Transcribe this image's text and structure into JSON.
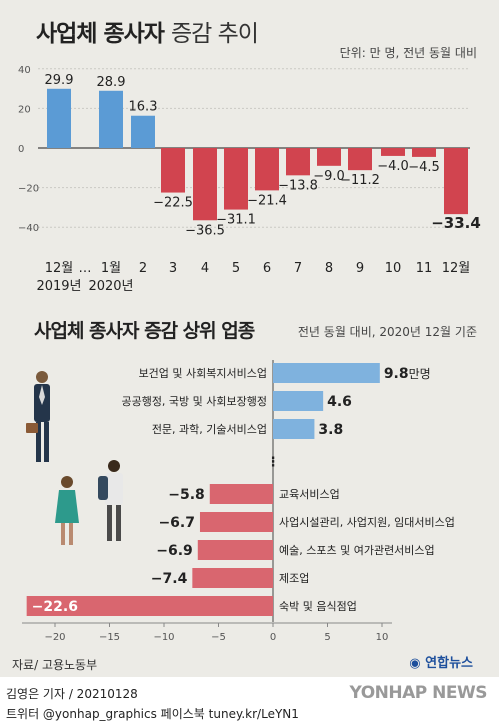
{
  "header": {
    "title_bold": "사업체 종사자",
    "title_light": "증감 추이",
    "unit": "단위: 만 명, 전년 동월 대비"
  },
  "section2": {
    "title": "사업체 종사자 증감 상위 업종",
    "unit": "전년 동월 대비, 2020년 12월 기준"
  },
  "source": "자료/ 고용노동부",
  "logo": "연합뉴스",
  "footer": {
    "line1": "김영은 기자 / 20210128",
    "line2": "트위터 @yonhap_graphics  페이스북 tuney.kr/LeYN1",
    "brand": "YONHAP NEWS"
  },
  "chart_data": [
    {
      "type": "bar",
      "categories": [
        "12월\n2019년",
        "1월\n2020년",
        "2",
        "3",
        "4",
        "5",
        "6",
        "7",
        "8",
        "9",
        "10",
        "11",
        "12월"
      ],
      "values": [
        29.9,
        28.9,
        16.3,
        -22.5,
        -36.5,
        -31.1,
        -21.4,
        -13.8,
        -9.0,
        -11.2,
        -4.0,
        -4.5,
        -33.4
      ],
      "labels": [
        "29.9",
        "28.9",
        "16.3",
        "-22.5",
        "-36.5",
        "-31.1",
        "-21.4",
        "-13.8",
        "-9.0",
        "-11.2",
        "-4.0",
        "-4.5",
        "-33.4"
      ],
      "yticks": [
        "40",
        "20",
        "0",
        "-20",
        "-40"
      ],
      "ylim": [
        -45,
        40
      ],
      "gap_marker": "…",
      "colors": {
        "positive": "#5b9bd5",
        "negative": "#d1444f"
      }
    },
    {
      "type": "bar",
      "orientation": "horizontal",
      "categories": [
        "보건업 및 사회복지서비스업",
        "공공행정, 국방 및 사회보장행정",
        "전문, 과학, 기술서비스업",
        "교육서비스업",
        "사업시설관리, 사업지원, 임대서비스업",
        "예술, 스포츠 및 여가관련서비스업",
        "제조업",
        "숙박 및 음식점업"
      ],
      "values": [
        9.8,
        4.6,
        3.8,
        -5.8,
        -6.7,
        -6.9,
        -7.4,
        -22.6
      ],
      "labels": [
        "9.8",
        "4.6",
        "3.8",
        "-5.8",
        "-6.7",
        "-6.9",
        "-7.4",
        "-22.6"
      ],
      "first_value_unit": "만명",
      "xticks": [
        "-20",
        "-15",
        "-10",
        "-5",
        "0",
        "5",
        "10"
      ],
      "xlim": [
        -23,
        11
      ],
      "gap_marker": "⋮",
      "colors": {
        "positive": "#7fb2de",
        "negative": "#d9666f"
      }
    }
  ]
}
